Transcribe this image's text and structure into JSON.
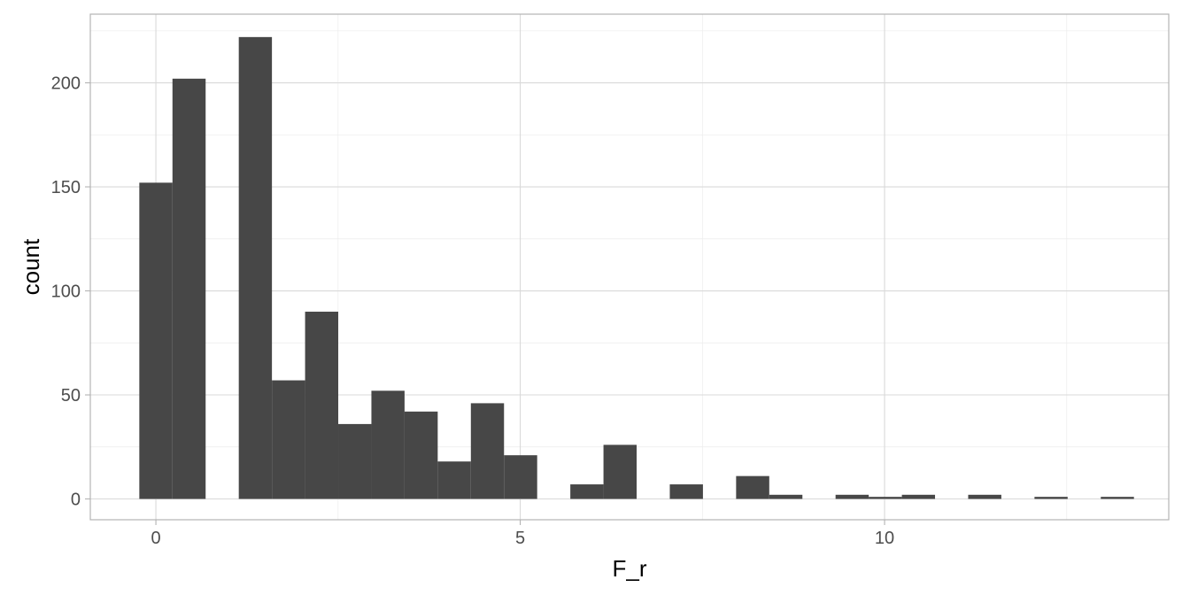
{
  "chart_data": {
    "type": "bar",
    "subtype": "histogram",
    "xlabel": "F_r",
    "ylabel": "count",
    "xlim": [
      -0.9,
      13.9
    ],
    "ylim": [
      -10,
      233
    ],
    "x_ticks": [
      0,
      5,
      10
    ],
    "x_tick_labels": [
      "0",
      "5",
      "10"
    ],
    "y_ticks": [
      0,
      50,
      100,
      150,
      200
    ],
    "y_tick_labels": [
      "0",
      "50",
      "100",
      "150",
      "200"
    ],
    "grid": true,
    "bin_width": 0.455,
    "bins": [
      {
        "center": 0.0,
        "count": 152
      },
      {
        "center": 0.455,
        "count": 202
      },
      {
        "center": 0.91,
        "count": 0
      },
      {
        "center": 1.365,
        "count": 222
      },
      {
        "center": 1.82,
        "count": 57
      },
      {
        "center": 2.275,
        "count": 90
      },
      {
        "center": 2.73,
        "count": 36
      },
      {
        "center": 3.185,
        "count": 52
      },
      {
        "center": 3.64,
        "count": 42
      },
      {
        "center": 4.095,
        "count": 18
      },
      {
        "center": 4.55,
        "count": 46
      },
      {
        "center": 5.005,
        "count": 21
      },
      {
        "center": 5.46,
        "count": 0
      },
      {
        "center": 5.915,
        "count": 7
      },
      {
        "center": 6.37,
        "count": 26
      },
      {
        "center": 6.825,
        "count": 0
      },
      {
        "center": 7.28,
        "count": 7
      },
      {
        "center": 7.735,
        "count": 0
      },
      {
        "center": 8.19,
        "count": 11
      },
      {
        "center": 8.645,
        "count": 2
      },
      {
        "center": 9.1,
        "count": 0
      },
      {
        "center": 9.555,
        "count": 2
      },
      {
        "center": 10.01,
        "count": 1
      },
      {
        "center": 10.465,
        "count": 2
      },
      {
        "center": 10.92,
        "count": 0
      },
      {
        "center": 11.375,
        "count": 2
      },
      {
        "center": 11.83,
        "count": 0
      },
      {
        "center": 12.285,
        "count": 1
      },
      {
        "center": 12.74,
        "count": 0
      },
      {
        "center": 13.195,
        "count": 1
      }
    ],
    "colors": {
      "bar": "#474747",
      "panel_border": "#b3b3b3",
      "grid_major": "#d9d9d9",
      "grid_minor": "#ececec",
      "tick_label": "#4d4d4d",
      "axis_title": "#000000"
    }
  }
}
